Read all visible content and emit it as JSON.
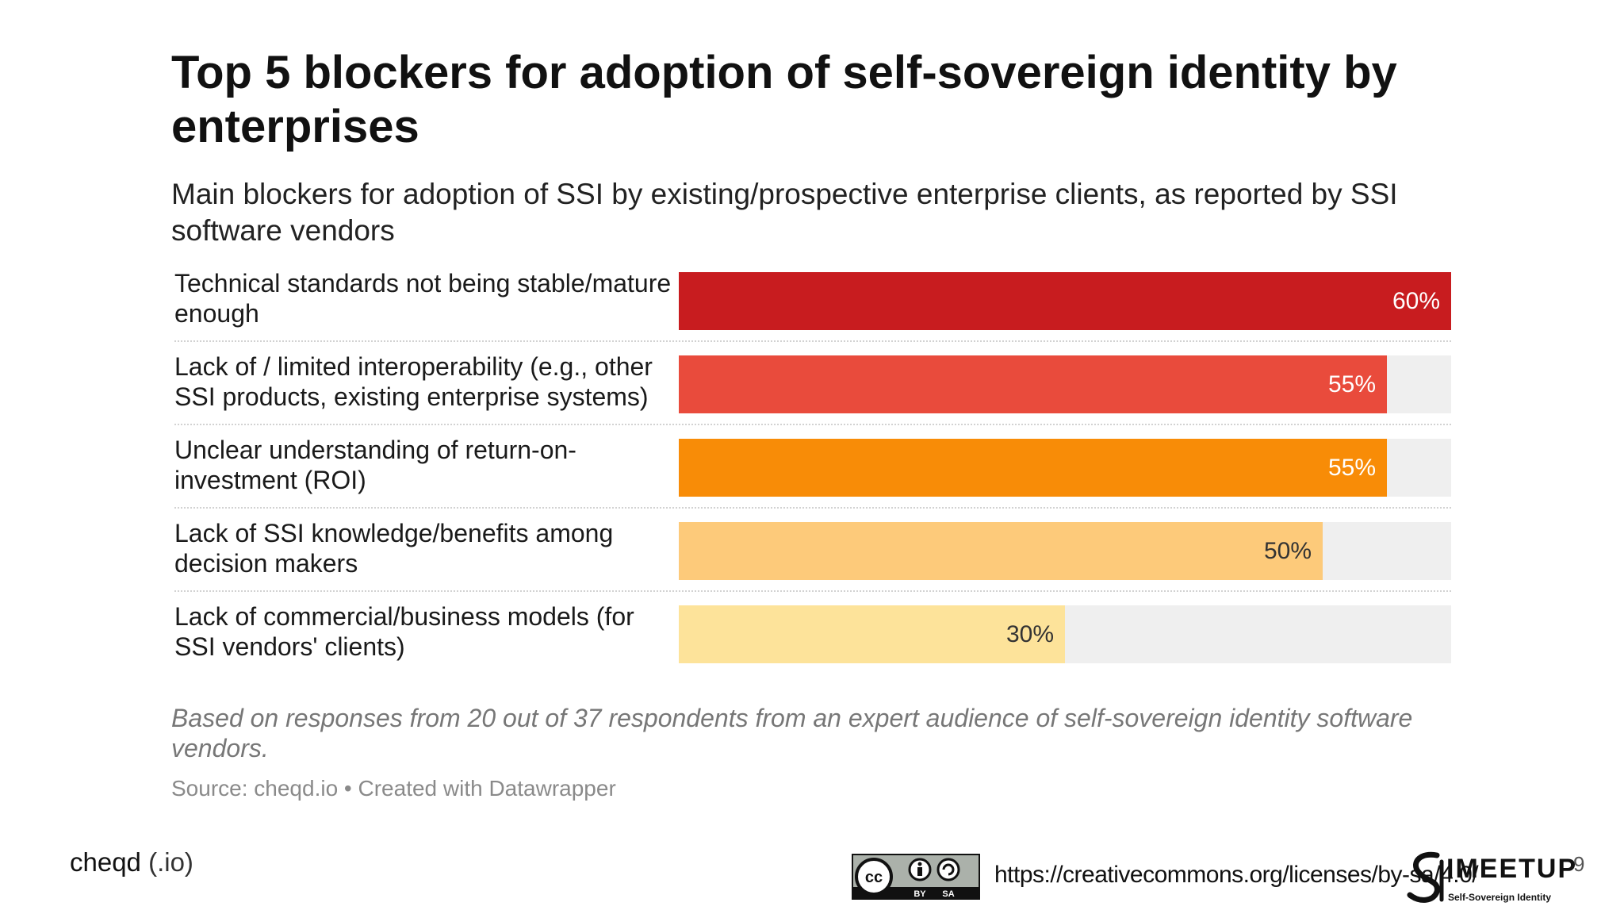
{
  "slide": {
    "title": "Top 5 blockers for adoption of self-sovereign identity by enterprises",
    "subtitle": "Main blockers for adoption of SSI by existing/prospective enterprise clients, as reported by SSI software vendors",
    "note": "Based on responses from 20 out of 37 respondents from an expert audience of self-sovereign identity software vendors.",
    "source": "Source: cheqd.io • Created with Datawrapper",
    "brand_name": "cheqd",
    "brand_suffix": "(.io)",
    "license_url": "https://creativecommons.org/licenses/by-sa/4.0/",
    "license_badge_labels": [
      "cc",
      "BY",
      "SA"
    ],
    "logo_text": "IMEETUP",
    "logo_tagline": "Self-Sovereign Identity",
    "page_number": "9"
  },
  "chart_data": {
    "type": "bar",
    "orientation": "horizontal",
    "title": "Top 5 blockers for adoption of self-sovereign identity by enterprises",
    "subtitle": "Main blockers for adoption of SSI by existing/prospective enterprise clients, as reported by SSI software vendors",
    "categories": [
      "Technical standards not being stable/mature enough",
      "Lack of / limited interoperability (e.g., other SSI products, existing enterprise systems)",
      "Unclear understanding of return-on-investment (ROI)",
      "Lack of SSI knowledge/benefits among decision makers",
      "Lack of commercial/business models (for SSI vendors' clients)"
    ],
    "values": [
      60,
      55,
      55,
      50,
      30
    ],
    "value_labels": [
      "60%",
      "55%",
      "55%",
      "50%",
      "30%"
    ],
    "bar_colors": [
      "#c81c1f",
      "#e94b3c",
      "#f88c07",
      "#fdca7a",
      "#fde39a"
    ],
    "label_colors": [
      "#ffffff",
      "#ffffff",
      "#ffffff",
      "#333333",
      "#333333"
    ],
    "track_color": "#efefef",
    "xlim": [
      0,
      60
    ],
    "unit": "%",
    "xlabel": "",
    "ylabel": "",
    "grid": false,
    "legend": "none"
  }
}
